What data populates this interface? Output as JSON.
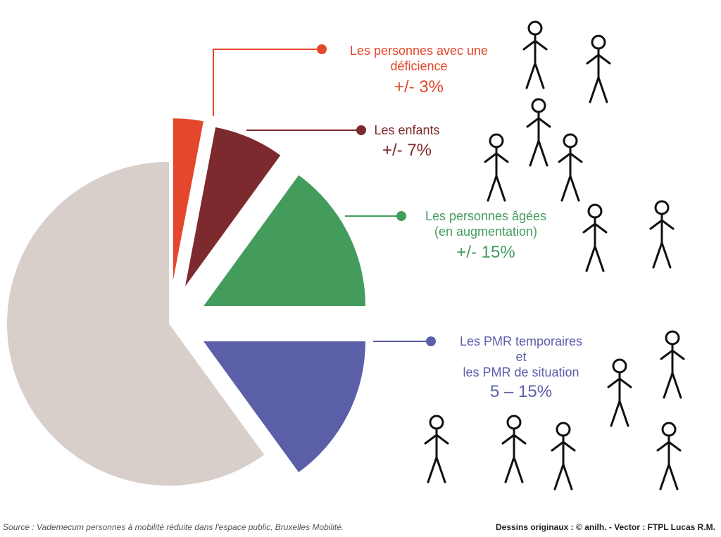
{
  "chart_data": {
    "type": "pie",
    "categories": [
      "Les personnes avec une\ndéficience",
      "Les enfants",
      "Les personnes âgées\n(en augmentation)",
      "Les PMR temporaires\net\nles PMR de situation",
      null
    ],
    "values": [
      3,
      7,
      15,
      15,
      60
    ],
    "value_labels": [
      "+/- 3%",
      "+/- 7%",
      "+/- 15%",
      "5 – 15%",
      null
    ],
    "colors": [
      "#e4472b",
      "#7d2a2e",
      "#449c5c",
      "#5a5fa8",
      "#d8ceca"
    ],
    "source": "Source : Vademecum personnes à mobilité réduite dans l'espace public, Bruxelles Mobilité.",
    "credit": "Dessins originaux : © anilh. - Vector : FTPL Lucas R.M."
  }
}
